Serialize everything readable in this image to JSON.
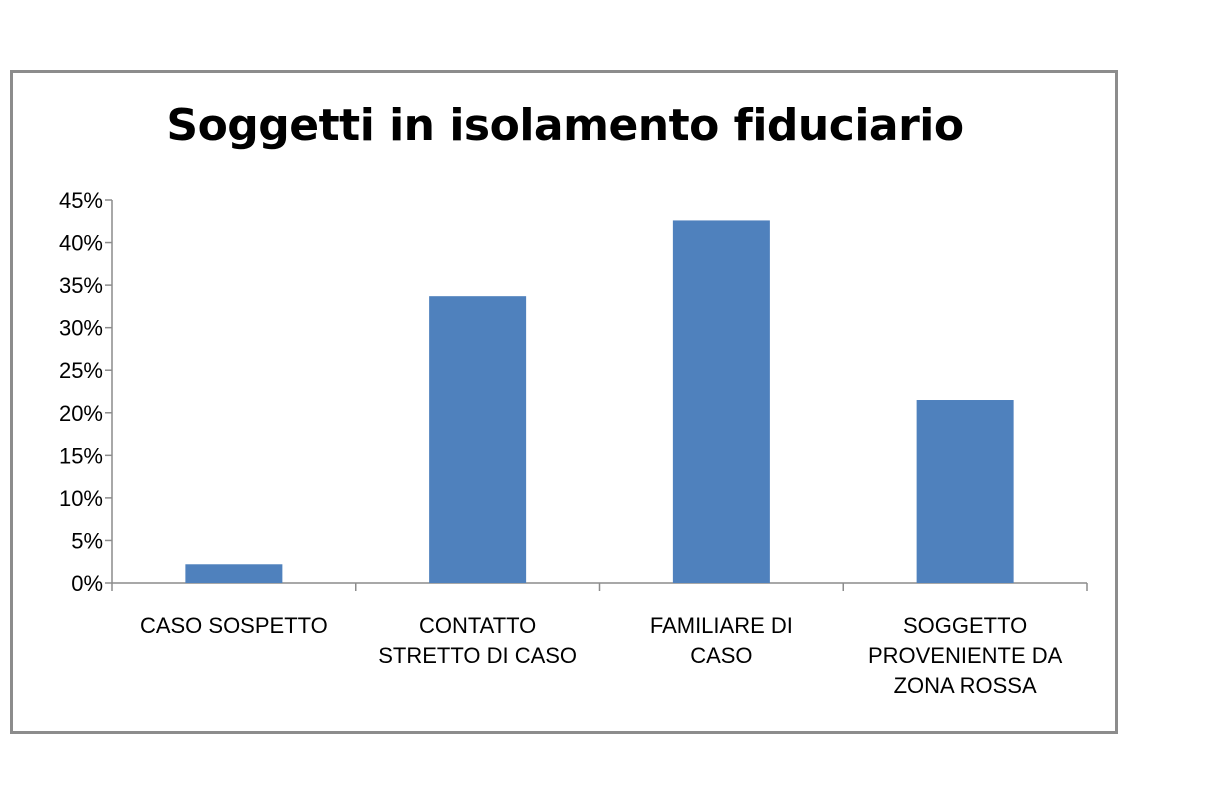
{
  "chart_data": {
    "type": "bar",
    "title": "Soggetti in isolamento fiduciario",
    "categories": [
      [
        "CASO SOSPETTO"
      ],
      [
        "CONTATTO",
        "STRETTO DI CASO"
      ],
      [
        "FAMILIARE DI",
        "CASO"
      ],
      [
        "SOGGETTO",
        "PROVENIENTE DA",
        "ZONA ROSSA"
      ]
    ],
    "values": [
      2.2,
      33.7,
      42.6,
      21.5
    ],
    "ylim": [
      0,
      45
    ],
    "yticks": [
      "0%",
      "5%",
      "10%",
      "15%",
      "20%",
      "25%",
      "30%",
      "35%",
      "40%",
      "45%"
    ],
    "bar_color": "#4f81bd",
    "axis_color": "#8c8c8c",
    "grid": false,
    "legend": "none"
  }
}
